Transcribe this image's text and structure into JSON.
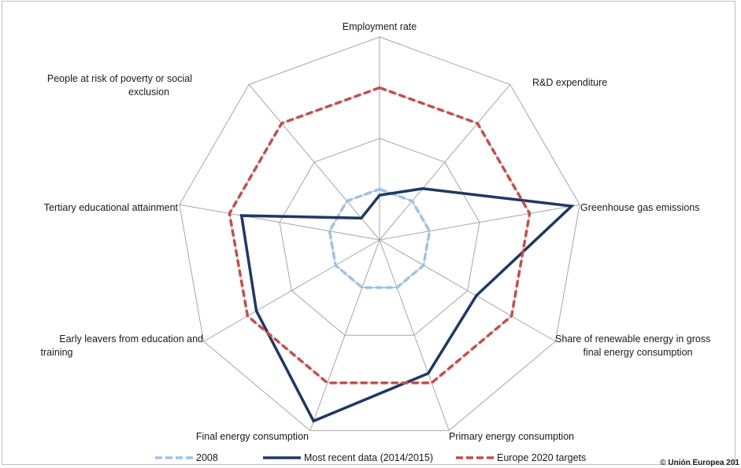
{
  "chart_data": {
    "type": "radar",
    "axes": [
      [
        "Employment rate"
      ],
      [
        "R&D expenditure"
      ],
      [
        "Greenhouse gas emissions"
      ],
      [
        "Share of renewable energy in gross",
        "final energy consumption"
      ],
      [
        "Primary energy consumption"
      ],
      [
        "Final energy consumption"
      ],
      [
        "Early leavers from education and",
        "training"
      ],
      [
        "Tertiary educational attainment"
      ],
      [
        "People at risk of poverty or social",
        "exclusion"
      ]
    ],
    "rlim": [
      0,
      1
    ],
    "grid_rings": 4,
    "series": [
      {
        "name": "2008",
        "color": "#9dc3e6",
        "dash": "dash",
        "values": [
          0.25,
          0.25,
          0.25,
          0.25,
          0.25,
          0.25,
          0.25,
          0.25,
          0.25
        ]
      },
      {
        "name": "Most recent data (2014/2015)",
        "color": "#1f3864",
        "dash": "solid",
        "values": [
          0.22,
          0.33,
          0.96,
          0.55,
          0.7,
          0.95,
          0.7,
          0.69,
          0.14
        ]
      },
      {
        "name": "Europe 2020 targets",
        "color": "#c0504d",
        "dash": "dash",
        "values": [
          0.75,
          0.75,
          0.75,
          0.75,
          0.75,
          0.75,
          0.75,
          0.75,
          0.75
        ]
      }
    ]
  },
  "copyright": "© Unión Europea 201"
}
